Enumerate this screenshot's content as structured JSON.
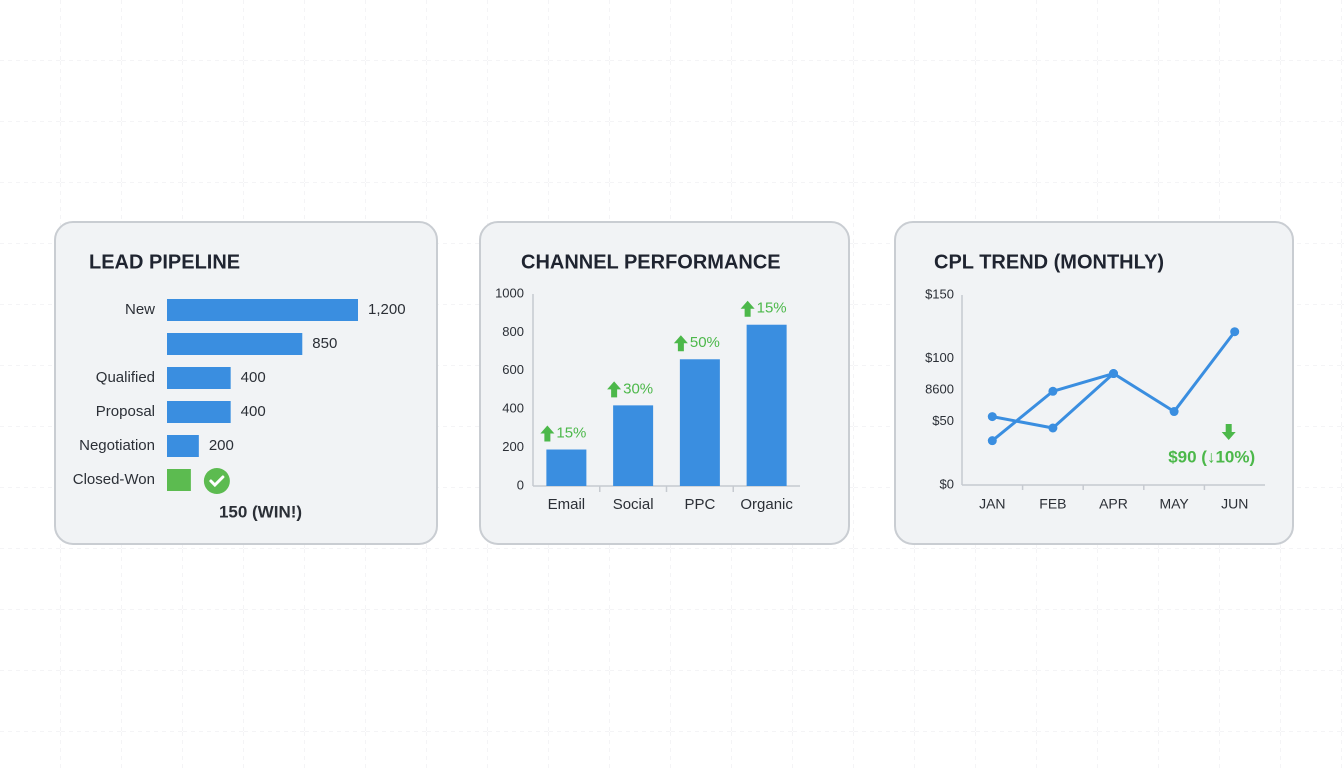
{
  "chart_data": [
    {
      "type": "hbar",
      "title": "LEAD PIPELINE",
      "categories": [
        "New",
        null,
        "Qualified",
        "Proposal",
        "Negotiation",
        "Closed-Won"
      ],
      "values": [
        1200,
        850,
        400,
        400,
        200,
        150
      ],
      "value_labels": [
        "1,200",
        "850",
        "400",
        "400",
        "200",
        "150 (WIN!)"
      ],
      "colors": [
        "#3a8ee0",
        "#3a8ee0",
        "#3a8ee0",
        "#3a8ee0",
        "#3a8ee0",
        "#5cbb50"
      ]
    },
    {
      "type": "bar",
      "title": "CHANNEL PERFORMANCE",
      "categories": [
        "Email",
        "Social",
        "PPC",
        "Organic"
      ],
      "values": [
        190,
        420,
        660,
        840
      ],
      "annotations": [
        "15%",
        "30%",
        "50%",
        "15%"
      ],
      "color": "#3a8ee0",
      "annotation_color": "#4cb84a",
      "ylim": [
        0,
        1000
      ],
      "yticks": [
        0,
        200,
        400,
        600,
        800,
        1000
      ]
    },
    {
      "type": "line",
      "title": "CPL TREND (MONTHLY)",
      "categories": [
        "JAN",
        "FEB",
        "APR",
        "MAY",
        "JUN"
      ],
      "series": [
        {
          "color": "#3a8ee0",
          "values": [
            35,
            74,
            88,
            null,
            null
          ]
        },
        {
          "color": "#3a8ee0",
          "values": [
            54,
            45,
            88,
            58,
            121
          ]
        }
      ],
      "ylim": [
        0,
        150
      ],
      "yticks": [
        {
          "value": 0,
          "label": "$0"
        },
        {
          "value": 50,
          "label": "$50"
        },
        {
          "value": 100,
          "label": "$100"
        },
        {
          "value": 150,
          "label": "$150"
        }
      ],
      "ytick_extra_label": "8600",
      "annotation": "$90 (↓10%)",
      "annotation_color": "#4cb84a"
    }
  ]
}
